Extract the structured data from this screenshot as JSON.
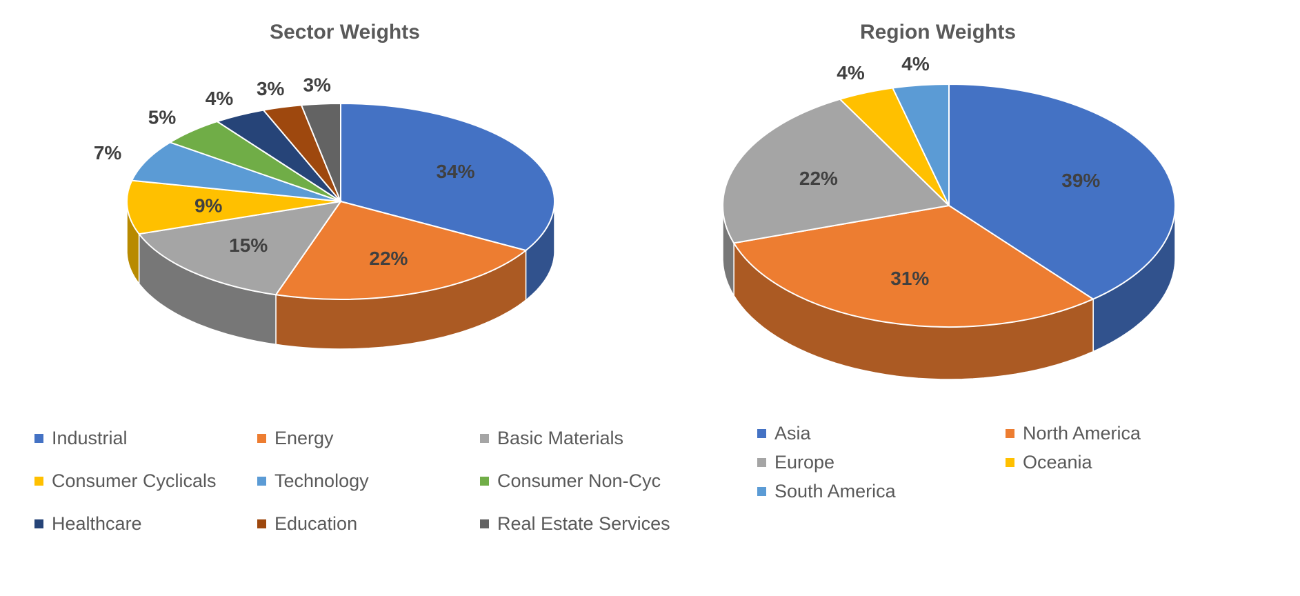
{
  "chart_data": [
    {
      "type": "pie",
      "title": "Sector Weights",
      "categories": [
        "Industrial",
        "Energy",
        "Basic Materials",
        "Consumer Cyclicals",
        "Technology",
        "Consumer Non-Cyc",
        "Healthcare",
        "Education",
        "Real Estate Services"
      ],
      "values": [
        34,
        22,
        15,
        9,
        7,
        5,
        4,
        3,
        3
      ],
      "data_labels": [
        "34%",
        "22%",
        "15%",
        "9%",
        "7%",
        "5%",
        "4%",
        "3%",
        "3%"
      ],
      "colors": [
        "#4472C4",
        "#ED7D31",
        "#A5A5A5",
        "#FFC000",
        "#5B9BD5",
        "#70AD47",
        "#264478",
        "#9E480E",
        "#636363"
      ],
      "legend": "bottom",
      "style": "3d"
    },
    {
      "type": "pie",
      "title": "Region Weights",
      "categories": [
        "Asia",
        "North America",
        "Europe",
        "Oceania",
        "South America"
      ],
      "values": [
        39,
        31,
        22,
        4,
        4
      ],
      "data_labels": [
        "39%",
        "31%",
        "22%",
        "4%",
        "4%"
      ],
      "colors": [
        "#4472C4",
        "#ED7D31",
        "#A5A5A5",
        "#FFC000",
        "#5B9BD5"
      ],
      "legend": "bottom",
      "style": "3d"
    }
  ]
}
